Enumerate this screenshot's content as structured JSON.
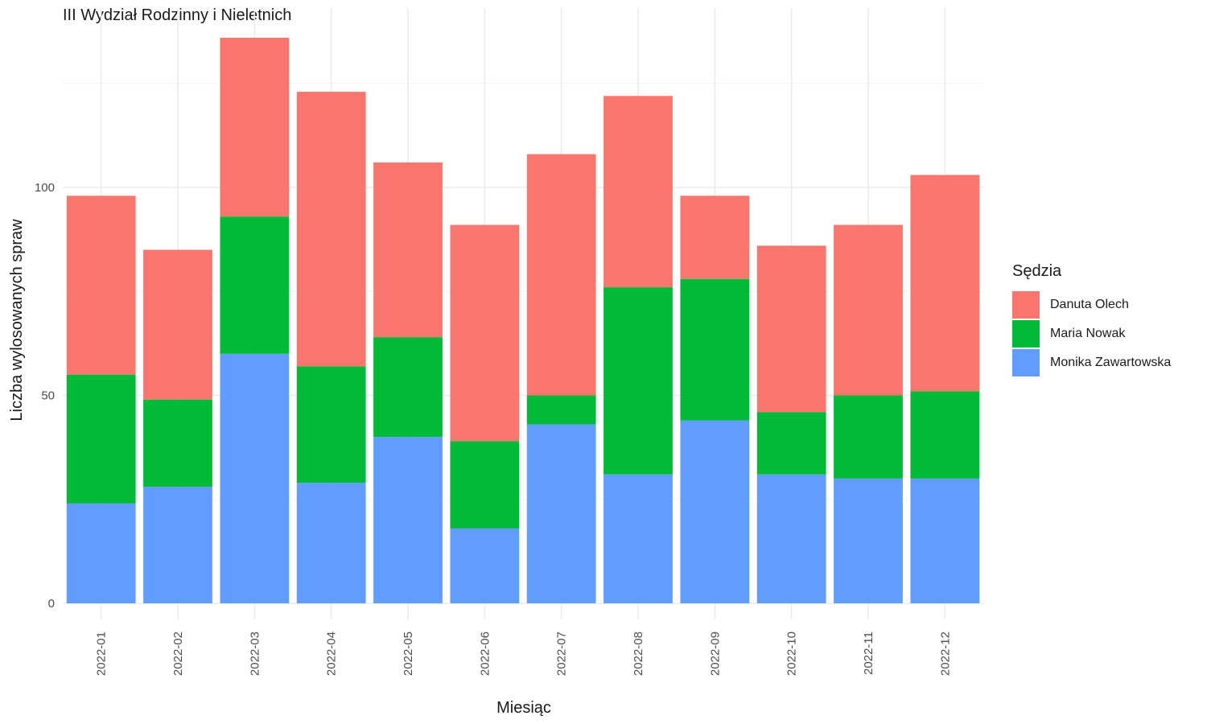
{
  "chart_data": {
    "type": "bar",
    "stacked": true,
    "title": "III Wydział Rodzinny i Nieletnich",
    "xlabel": "Miesiąc",
    "ylabel": "Liczba wylosowanych spraw",
    "ylim": [
      0,
      138
    ],
    "yticks": [
      0,
      50,
      100
    ],
    "grid": true,
    "legend_title": "Sędzia",
    "legend_position": "right",
    "categories": [
      "2022-01",
      "2022-02",
      "2022-03",
      "2022-04",
      "2022-05",
      "2022-06",
      "2022-07",
      "2022-08",
      "2022-09",
      "2022-10",
      "2022-11",
      "2022-12"
    ],
    "series": [
      {
        "name": "Monika Zawartowska",
        "color": "#619CFF",
        "values": [
          24,
          28,
          60,
          29,
          40,
          18,
          43,
          31,
          44,
          31,
          30,
          30
        ]
      },
      {
        "name": "Maria Nowak",
        "color": "#00BA38",
        "values": [
          31,
          21,
          33,
          28,
          24,
          21,
          7,
          45,
          34,
          15,
          20,
          21
        ]
      },
      {
        "name": "Danuta Olech",
        "color": "#F8766D",
        "values": [
          43,
          36,
          43,
          66,
          42,
          52,
          58,
          46,
          20,
          40,
          41,
          52
        ]
      }
    ],
    "legend_order": [
      "Danuta Olech",
      "Maria Nowak",
      "Monika Zawartowska"
    ]
  }
}
